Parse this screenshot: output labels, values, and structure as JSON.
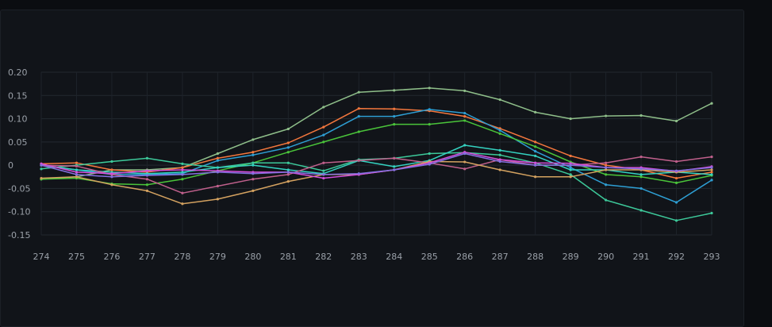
{
  "chart_data": {
    "type": "line",
    "title": "",
    "xlabel": "",
    "ylabel": "",
    "x": [
      274,
      275,
      276,
      277,
      278,
      279,
      280,
      281,
      282,
      283,
      284,
      285,
      286,
      287,
      288,
      289,
      290,
      291,
      292,
      293
    ],
    "x_tick_labels": [
      "274",
      "275",
      "276",
      "277",
      "278",
      "279",
      "280",
      "281",
      "282",
      "283",
      "284",
      "285",
      "286",
      "287",
      "288",
      "289",
      "290",
      "291",
      "292",
      "293"
    ],
    "y_ticks": [
      0.2,
      0.15,
      0.1,
      0.05,
      0,
      -0.05,
      -0.1,
      -0.15
    ],
    "y_tick_labels": [
      "0.20",
      "0.15",
      "0.10",
      "0.05",
      "0",
      "-0.05",
      "-0.10",
      "-0.15"
    ],
    "ylim": [
      -0.15,
      0.2
    ],
    "grid": true,
    "legend": "none",
    "series": [
      {
        "color": "#8fbf8a",
        "values": [
          -0.03,
          -0.025,
          -0.01,
          -0.01,
          -0.005,
          0.025,
          0.055,
          0.078,
          0.125,
          0.157,
          0.161,
          0.166,
          0.16,
          0.141,
          0.114,
          0.1,
          0.106,
          0.107,
          0.095,
          0.133
        ]
      },
      {
        "color": "#f4773d",
        "values": [
          0.003,
          0.005,
          -0.01,
          -0.015,
          -0.005,
          0.015,
          0.028,
          0.048,
          0.082,
          0.122,
          0.121,
          0.117,
          0.105,
          0.079,
          0.05,
          0.02,
          0.0,
          -0.01,
          -0.028,
          -0.015
        ]
      },
      {
        "color": "#2e9fd4",
        "values": [
          0.0,
          -0.01,
          -0.02,
          -0.02,
          -0.018,
          0.01,
          0.022,
          0.038,
          0.065,
          0.105,
          0.105,
          0.12,
          0.112,
          0.075,
          0.03,
          -0.005,
          -0.042,
          -0.05,
          -0.08,
          -0.032
        ]
      },
      {
        "color": "#4ac43a",
        "values": [
          -0.03,
          -0.028,
          -0.04,
          -0.042,
          -0.03,
          -0.012,
          0.005,
          0.028,
          0.05,
          0.072,
          0.088,
          0.088,
          0.096,
          0.068,
          0.04,
          0.007,
          -0.02,
          -0.025,
          -0.038,
          -0.022
        ]
      },
      {
        "color": "#3dc99a",
        "values": [
          -0.008,
          0.0,
          0.008,
          0.015,
          0.003,
          -0.005,
          0.005,
          0.005,
          -0.012,
          0.012,
          0.015,
          0.025,
          0.027,
          0.022,
          0.005,
          -0.02,
          -0.075,
          -0.097,
          -0.119,
          -0.103
        ]
      },
      {
        "color": "#34d2c0",
        "values": [
          0.0,
          -0.01,
          -0.015,
          -0.018,
          -0.015,
          -0.005,
          0.0,
          -0.01,
          -0.018,
          0.01,
          -0.003,
          0.01,
          0.043,
          0.032,
          0.02,
          -0.01,
          -0.01,
          -0.02,
          -0.015,
          -0.02
        ]
      },
      {
        "color": "#c0608c",
        "values": [
          0.0,
          -0.002,
          -0.02,
          -0.03,
          -0.06,
          -0.045,
          -0.03,
          -0.02,
          0.005,
          0.01,
          0.015,
          0.005,
          -0.008,
          0.012,
          0.0,
          0.0,
          0.005,
          0.018,
          0.008,
          0.018
        ]
      },
      {
        "color": "#d4a260",
        "values": [
          -0.028,
          -0.025,
          -0.042,
          -0.055,
          -0.083,
          -0.073,
          -0.055,
          -0.035,
          -0.02,
          -0.02,
          -0.01,
          0.008,
          0.007,
          -0.01,
          -0.025,
          -0.025,
          -0.01,
          -0.01,
          -0.015,
          -0.01
        ]
      },
      {
        "color": "#d54edc",
        "values": [
          0.003,
          -0.015,
          -0.018,
          -0.012,
          -0.01,
          -0.012,
          -0.015,
          -0.015,
          -0.028,
          -0.02,
          -0.01,
          0.005,
          0.028,
          0.012,
          0.005,
          0.004,
          -0.005,
          -0.005,
          -0.013,
          -0.003
        ]
      },
      {
        "color": "#8470e0",
        "values": [
          0.0,
          -0.02,
          -0.025,
          -0.022,
          -0.02,
          -0.015,
          -0.018,
          -0.015,
          -0.02,
          -0.018,
          -0.01,
          0.002,
          0.025,
          0.008,
          0.0,
          0.0,
          -0.005,
          -0.008,
          -0.012,
          -0.005
        ]
      }
    ]
  }
}
